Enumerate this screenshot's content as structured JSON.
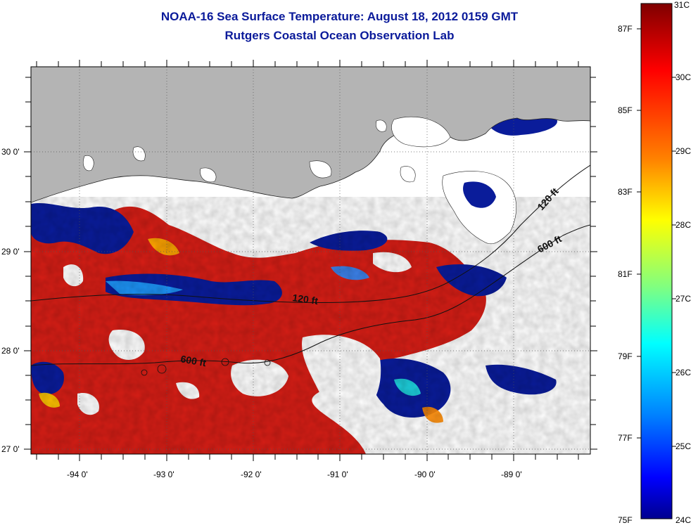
{
  "title_line1": "NOAA-16 Sea Surface Temperature:  August 18, 2012 0159 GMT",
  "title_line2": "Rutgers Coastal Ocean Observation Lab",
  "map": {
    "lon_ticks": [
      "-94 0'",
      "-93 0'",
      "-92 0'",
      "-91 0'",
      "-90 0'",
      "-89 0'"
    ],
    "lat_ticks": [
      "30 0'",
      "29 0'",
      "28 0'",
      "27 0'"
    ],
    "contours": [
      "120 ft",
      "600 ft",
      "120 ft",
      "600 ft"
    ]
  },
  "colorbar": {
    "celsius": [
      "31C",
      "30C",
      "29C",
      "28C",
      "27C",
      "26C",
      "25C",
      "24C"
    ],
    "fahrenheit": [
      "87F",
      "85F",
      "83F",
      "81F",
      "79F",
      "77F",
      "75F"
    ],
    "gradient": [
      "#7f0000",
      "#ff0000",
      "#ff8000",
      "#ffff00",
      "#80ff80",
      "#00ffff",
      "#0080ff",
      "#0000ff",
      "#00008f"
    ]
  },
  "colors": {
    "title": "#0a1a9a",
    "land": "#b4b4b4",
    "warm": "#d82018",
    "cool": "#0a1c9a",
    "cloud": "#ffffff"
  }
}
